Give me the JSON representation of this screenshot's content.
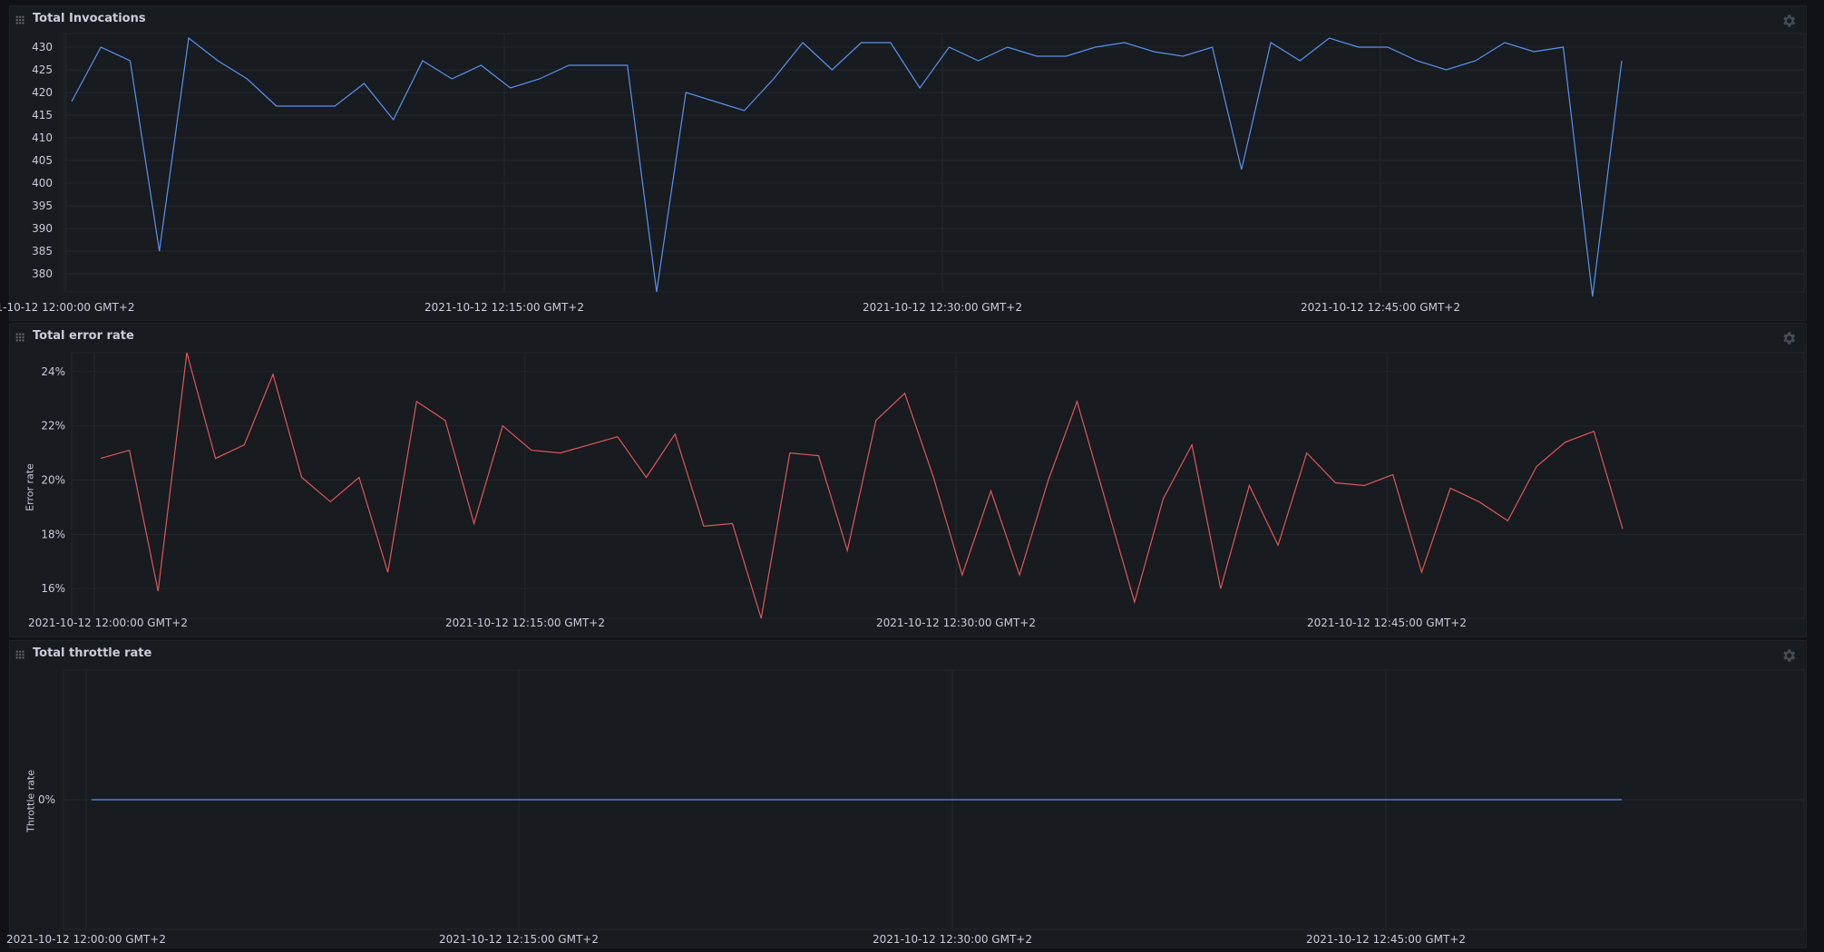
{
  "panels": [
    {
      "title": "Total Invocations",
      "y_axis_title": "",
      "x_tick_labels": [
        "1-10-12 12:00:00 GMT+2",
        "2021-10-12 12:15:00 GMT+2",
        "2021-10-12 12:30:00 GMT+2",
        "2021-10-12 12:45:00 GMT+2"
      ]
    },
    {
      "title": "Total error rate",
      "y_axis_title": "Error rate",
      "x_tick_labels": [
        "2021-10-12 12:00:00 GMT+2",
        "2021-10-12 12:15:00 GMT+2",
        "2021-10-12 12:30:00 GMT+2",
        "2021-10-12 12:45:00 GMT+2"
      ]
    },
    {
      "title": "Total throttle rate",
      "y_axis_title": "Throttle rate",
      "x_tick_labels": [
        "2021-10-12 12:00:00 GMT+2",
        "2021-10-12 12:15:00 GMT+2",
        "2021-10-12 12:30:00 GMT+2",
        "2021-10-12 12:45:00 GMT+2"
      ]
    }
  ],
  "icons": {
    "panel_menu": "gear-icon",
    "drag": "drag-handle-icon"
  },
  "colors": {
    "invocations_line": "#5794f2",
    "error_line": "#e0575b",
    "throttle_line": "#5794f2"
  },
  "chart_data": [
    {
      "type": "line",
      "title": "Total Invocations",
      "xlabel": "",
      "ylabel": "",
      "ylim": [
        376,
        433
      ],
      "y_ticks": [
        "430",
        "425",
        "420",
        "415",
        "410",
        "405",
        "400",
        "395",
        "390",
        "385",
        "380"
      ],
      "grid": true,
      "x_start": "2021-10-12 12:00:00",
      "x_step_minutes": 1,
      "series": [
        {
          "name": "",
          "values": [
            418,
            430,
            427,
            385,
            432,
            427,
            423,
            417,
            417,
            417,
            422,
            414,
            427,
            423,
            426,
            421,
            423,
            426,
            426,
            426,
            376,
            420,
            418,
            416,
            423,
            431,
            425,
            431,
            431,
            421,
            430,
            427,
            430,
            428,
            428,
            430,
            431,
            429,
            428,
            430,
            403,
            431,
            427,
            432,
            430,
            430,
            427,
            425,
            427,
            431,
            429,
            430,
            375,
            427
          ]
        }
      ]
    },
    {
      "type": "line",
      "title": "Total error rate",
      "xlabel": "",
      "ylabel": "Error rate",
      "ylim": [
        14.9,
        24.7
      ],
      "y_ticks": [
        "24%",
        "22%",
        "20%",
        "18%",
        "16%"
      ],
      "grid": true,
      "x_start": "2021-10-12 12:00:00",
      "x_step_minutes": 1,
      "series": [
        {
          "name": "",
          "values": [
            20.8,
            21.1,
            15.9,
            24.7,
            20.8,
            21.3,
            23.9,
            20.1,
            19.2,
            20.1,
            16.6,
            22.9,
            22.2,
            18.4,
            22.0,
            21.1,
            21.0,
            21.3,
            21.6,
            20.1,
            21.7,
            18.3,
            18.4,
            14.9,
            21.0,
            20.9,
            17.4,
            22.2,
            23.2,
            20.1,
            16.5,
            19.6,
            16.5,
            20.0,
            22.9,
            19.2,
            15.5,
            19.3,
            21.3,
            16.0,
            19.8,
            17.6,
            21.0,
            19.9,
            19.8,
            20.2,
            16.6,
            19.7,
            19.2,
            18.5,
            20.5,
            21.4,
            21.8,
            18.2
          ]
        }
      ]
    },
    {
      "type": "line",
      "title": "Total throttle rate",
      "xlabel": "",
      "ylabel": "Throttle rate",
      "ylim": [
        -1,
        1
      ],
      "y_ticks": [
        "0%"
      ],
      "grid": true,
      "x_start": "2021-10-12 12:00:00",
      "x_step_minutes": 1,
      "series": [
        {
          "name": "",
          "values": [
            0,
            0,
            0,
            0,
            0,
            0,
            0,
            0,
            0,
            0,
            0,
            0,
            0,
            0,
            0,
            0,
            0,
            0,
            0,
            0,
            0,
            0,
            0,
            0,
            0,
            0,
            0,
            0,
            0,
            0,
            0,
            0,
            0,
            0,
            0,
            0,
            0,
            0,
            0,
            0,
            0,
            0,
            0,
            0,
            0,
            0,
            0,
            0,
            0,
            0,
            0,
            0,
            0,
            0
          ]
        }
      ]
    }
  ]
}
